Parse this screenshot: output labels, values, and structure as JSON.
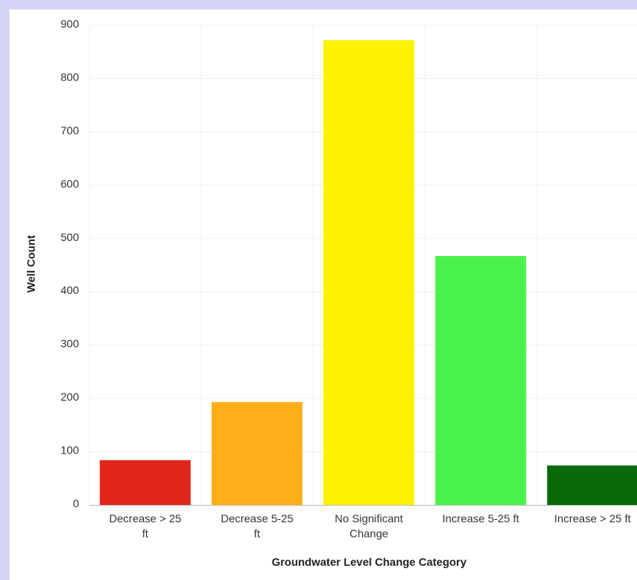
{
  "chart_data": {
    "type": "bar",
    "title": "",
    "xlabel": "Groundwater Level Change Category",
    "ylabel": "Well Count",
    "ylim": [
      0,
      900
    ],
    "y_ticks": [
      0,
      100,
      200,
      300,
      400,
      500,
      600,
      700,
      800,
      900
    ],
    "grid": true,
    "categories": [
      [
        "Decrease > 25",
        "ft"
      ],
      [
        "Decrease 5-25",
        "ft"
      ],
      [
        "No Significant",
        "Change"
      ],
      [
        "Increase 5-25 ft"
      ],
      [
        "Increase > 25 ft"
      ]
    ],
    "values": [
      84,
      193,
      872,
      467,
      74
    ],
    "colors": [
      "#e0251a",
      "#ffae1a",
      "#fff200",
      "#4cf24c",
      "#0a6a0a"
    ]
  }
}
